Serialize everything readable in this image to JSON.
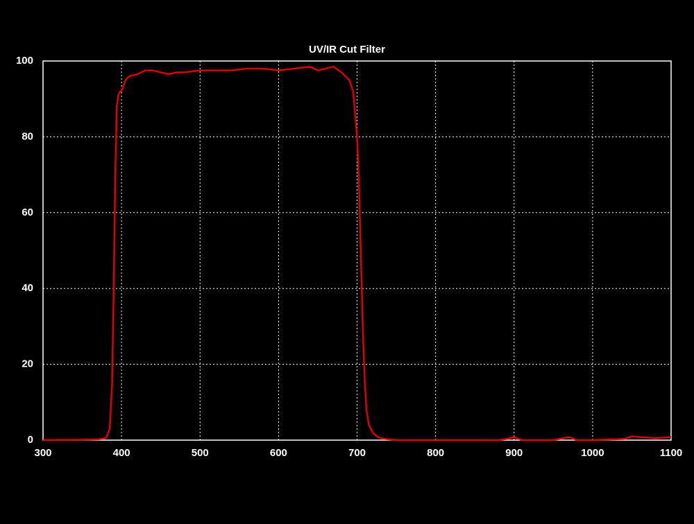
{
  "chart_data": {
    "type": "line",
    "title": "UV/IR Cut Filter",
    "x": [
      300,
      350,
      370,
      380,
      385,
      388,
      390,
      392,
      394,
      396,
      398,
      400,
      405,
      410,
      420,
      430,
      440,
      450,
      460,
      470,
      480,
      500,
      520,
      540,
      560,
      580,
      600,
      620,
      640,
      650,
      660,
      670,
      680,
      690,
      695,
      700,
      702,
      704,
      706,
      708,
      710,
      712,
      715,
      720,
      725,
      730,
      740,
      750,
      770,
      800,
      850,
      880,
      890,
      900,
      910,
      950,
      970,
      980,
      1000,
      1040,
      1050,
      1060,
      1080,
      1100
    ],
    "series": [
      {
        "color": "#e00000",
        "values": [
          0,
          0.1,
          0.2,
          0.5,
          3,
          15,
          40,
          70,
          88,
          91,
          92,
          92,
          95,
          96,
          96.5,
          97.5,
          97.5,
          97,
          96.5,
          97,
          97,
          97.5,
          97.5,
          97.5,
          98,
          98,
          97.5,
          98,
          98.5,
          97.5,
          98,
          98.5,
          97,
          95,
          92,
          80,
          70,
          55,
          40,
          25,
          15,
          8,
          4,
          2,
          1,
          0.5,
          0.2,
          0,
          0,
          0,
          0,
          0,
          0.3,
          0.8,
          0,
          0,
          0.8,
          0,
          0,
          0.3,
          1,
          0.8,
          0.5,
          0.8
        ]
      }
    ],
    "xlim": [
      300,
      1100
    ],
    "xticks": [
      300,
      400,
      500,
      600,
      700,
      800,
      900,
      1000,
      1100
    ],
    "ylim": [
      0,
      100
    ],
    "yticks": [
      0,
      20,
      40,
      60,
      80,
      100
    ],
    "grid": true
  }
}
